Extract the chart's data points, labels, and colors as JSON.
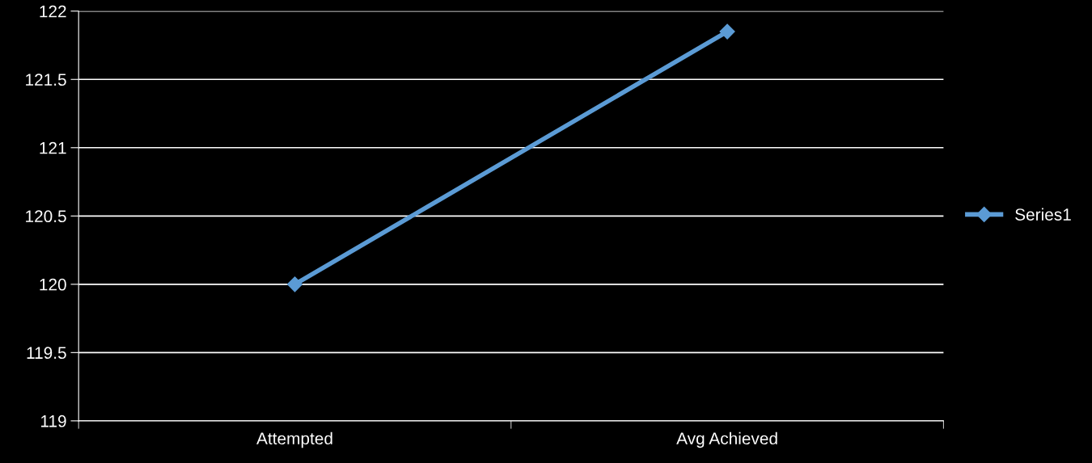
{
  "chart_data": {
    "type": "line",
    "categories": [
      "Attempted",
      "Avg Achieved"
    ],
    "series": [
      {
        "name": "Series1",
        "color": "#5b9bd5",
        "values": [
          120,
          121.85
        ]
      }
    ],
    "ylim": [
      119,
      122
    ],
    "yticks": [
      119,
      119.5,
      120,
      120.5,
      121,
      121.5,
      122
    ],
    "grid": "y",
    "legend": "right",
    "marker": "diamond",
    "line_style": "solid"
  }
}
